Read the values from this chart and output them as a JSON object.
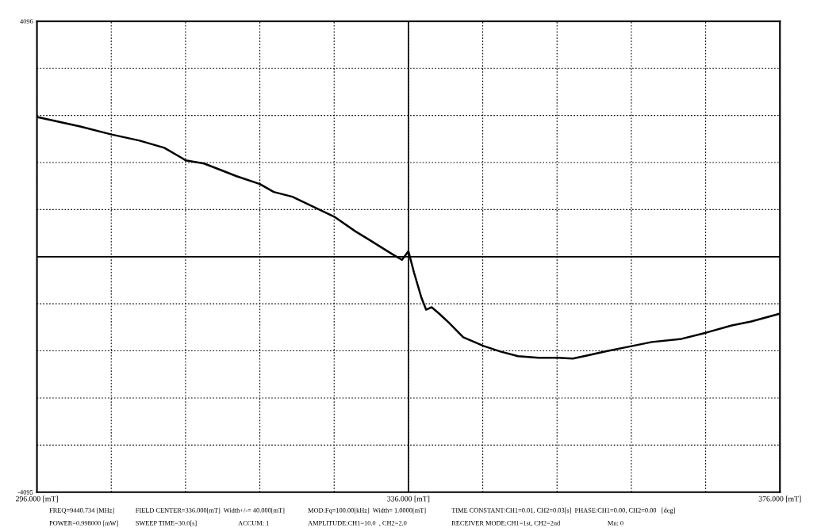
{
  "chart_data": {
    "type": "line",
    "x": [
      296.0,
      300.65,
      303.94,
      307.06,
      309.7,
      311.6,
      312.0,
      314.0,
      317.5,
      320.0,
      321.5,
      323.5,
      328.1,
      330.3,
      331.7,
      334.3,
      335.3,
      336.0,
      336.6,
      337.4,
      337.9,
      338.5,
      339.3,
      340.3,
      341.9,
      344.1,
      345.9,
      347.8,
      350.0,
      352.1,
      353.7,
      355.3,
      357.2,
      360.1,
      362.2,
      365.4,
      368.1,
      370.8,
      372.9,
      375.4,
      376.0
    ],
    "series": [
      {
        "color": "#000000",
        "values": [
          2432,
          2267,
          2130,
          2020,
          1896,
          1718,
          1676,
          1621,
          1401,
          1264,
          1127,
          1044,
          687,
          440,
          302,
          41,
          -55,
          96,
          -275,
          -714,
          -921,
          -879,
          -989,
          -1140,
          -1401,
          -1553,
          -1649,
          -1731,
          -1759,
          -1759,
          -1772,
          -1718,
          -1649,
          -1553,
          -1484,
          -1429,
          -1319,
          -1195,
          -1127,
          -1017,
          -990
        ]
      }
    ],
    "xlim": [
      296,
      376
    ],
    "ylim": [
      -4095,
      4096
    ],
    "xticks": [
      {
        "value": 296,
        "label": "296.000 [mT]"
      },
      {
        "value": 304,
        "label": null
      },
      {
        "value": 312,
        "label": null
      },
      {
        "value": 320,
        "label": null
      },
      {
        "value": 328,
        "label": null
      },
      {
        "value": 336,
        "label": "336.000 [mT]"
      },
      {
        "value": 344,
        "label": null
      },
      {
        "value": 352,
        "label": null
      },
      {
        "value": 360,
        "label": null
      },
      {
        "value": 368,
        "label": null
      },
      {
        "value": 376,
        "label": "376.000 [mT]"
      }
    ],
    "yticks": [
      -4095,
      {
        "value": -3277,
        "label": null
      },
      {
        "value": -2458,
        "label": null
      },
      {
        "value": -1638,
        "label": null
      },
      {
        "value": -819,
        "label": null
      },
      {
        "value": 819,
        "label": null
      },
      {
        "value": 1638,
        "label": null
      },
      {
        "value": 2458,
        "label": null
      },
      {
        "value": 3277,
        "label": null
      },
      4096
    ],
    "grid": true,
    "marker": "none",
    "line_style": "solid",
    "ref_lines": [
      {
        "axis": "x",
        "value": 336,
        "color": "#000000",
        "line_style": "solid"
      },
      {
        "axis": "y",
        "value": 0,
        "color": "#000000",
        "line_style": "solid"
      }
    ],
    "annotations": [
      "FREQ=9440.734 [MHz]",
      "FIELD CENTER=336.000[mT]  Width+/-= 40.000[mT]",
      "MOD:Fq=100.00[kHz]  Width= 1.0000[mT]",
      "TIME CONSTANT:CH1=0.01, CH2=0.03[s]  PHASE:CH1=0.00, CH2=0.00   [deg]",
      "POWER=0.998000 [mW]",
      "SWEEP TIME=30.0[s]",
      "ACCUM: 1",
      "AMPLITUDE:CH1=10.0  , CH2=2.0",
      "RECEIVER MODE:CH1=1st, CH2=2nd",
      "Mn: 0"
    ]
  }
}
